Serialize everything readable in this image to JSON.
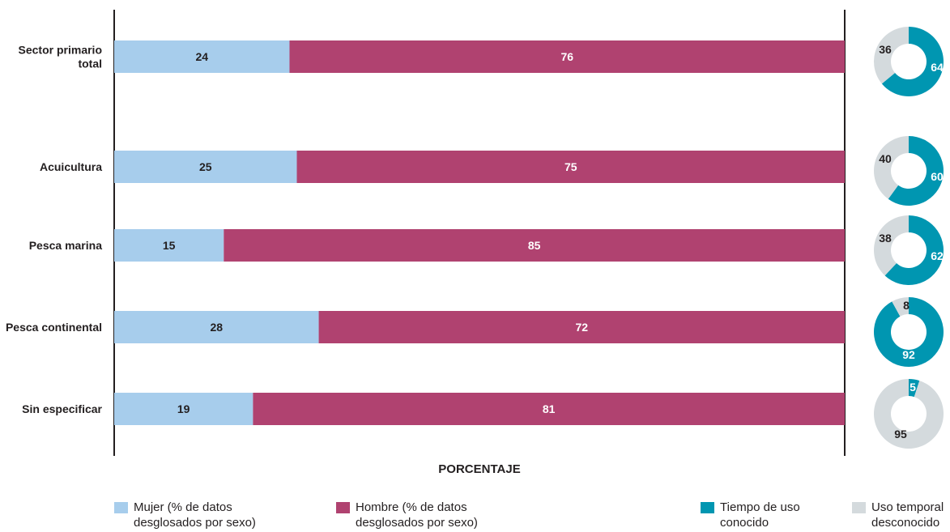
{
  "chart_data": [
    {
      "type": "bar",
      "stacked": true,
      "orientation": "horizontal",
      "categories": [
        "Sector primario total",
        "Acuicultura",
        "Pesca marina",
        "Pesca continental",
        "Sin especificar"
      ],
      "category_lines": [
        [
          "Sector primario",
          "total"
        ],
        [
          "Acuicultura"
        ],
        [
          "Pesca marina"
        ],
        [
          "Pesca continental"
        ],
        [
          "Sin especificar"
        ]
      ],
      "series": [
        {
          "name": "Mujer (% de datos desglosados por sexo)",
          "color": "#a7cdec",
          "values": [
            24,
            25,
            15,
            28,
            19
          ]
        },
        {
          "name": "Hombre (% de datos desglosados por sexo)",
          "color": "#b04270",
          "values": [
            76,
            75,
            85,
            72,
            81
          ]
        }
      ],
      "xlabel": "PORCENTAJE",
      "xlim": [
        0,
        100
      ]
    },
    {
      "type": "pie",
      "style": "donut",
      "categories": [
        "Sector primario total",
        "Acuicultura",
        "Pesca marina",
        "Pesca continental",
        "Sin especificar"
      ],
      "series": [
        {
          "name": "Tiempo de uso conocido",
          "color": "#0096b1",
          "values": [
            64,
            60,
            62,
            92,
            5
          ]
        },
        {
          "name": "Uso temporal desconocido",
          "color": "#d4dadd",
          "values": [
            36,
            40,
            38,
            8,
            95
          ]
        }
      ]
    }
  ],
  "legend": [
    {
      "lines": [
        "Mujer (% de datos",
        "desglosados por sexo)"
      ],
      "color": "#a7cdec"
    },
    {
      "lines": [
        "Hombre (% de datos",
        "desglosados por sexo)"
      ],
      "color": "#b04270"
    },
    {
      "lines": [
        "Tiempo de uso",
        "conocido"
      ],
      "color": "#0096b1"
    },
    {
      "lines": [
        "Uso temporal",
        "desconocido"
      ],
      "color": "#d4dadd"
    }
  ]
}
